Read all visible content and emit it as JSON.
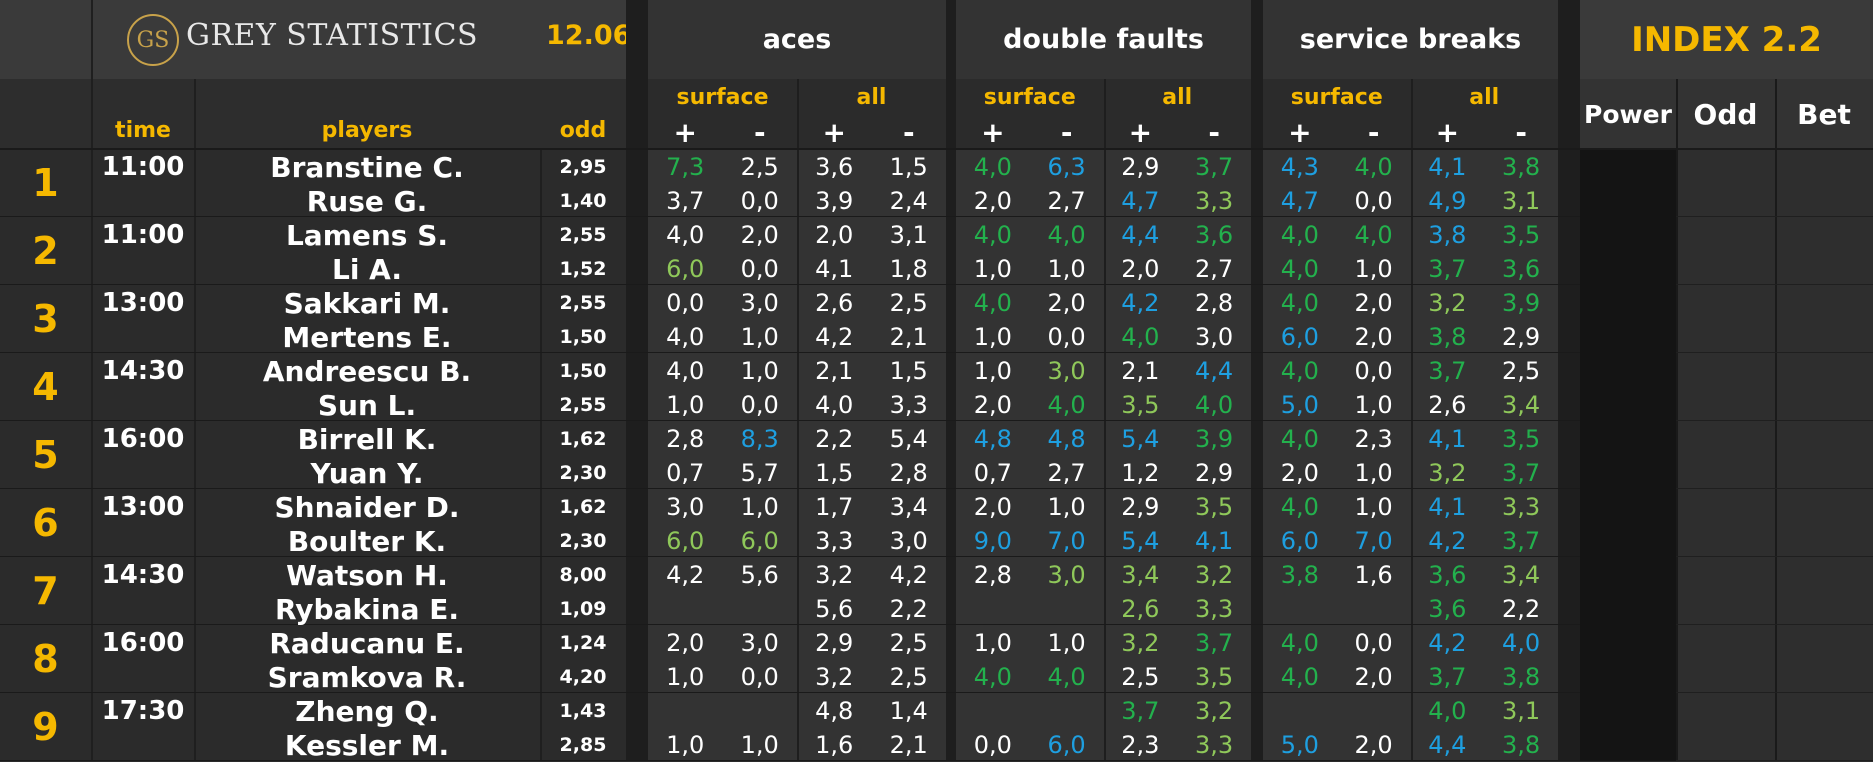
{
  "header": {
    "logo_mark": "GS",
    "brand": "GREY STATISTICS",
    "date": "12.06",
    "col_time": "time",
    "col_players": "players",
    "col_odd": "odd",
    "groups": [
      {
        "title": "aces",
        "sub_surface": "surface",
        "sub_all": "all"
      },
      {
        "title": "double faults",
        "sub_surface": "surface",
        "sub_all": "all"
      },
      {
        "title": "service breaks",
        "sub_surface": "surface",
        "sub_all": "all"
      }
    ],
    "plus": "+",
    "minus": "-",
    "index_title": "INDEX 2.2",
    "index_cols": [
      "Power",
      "Odd",
      "Bet"
    ]
  },
  "colors": {
    "white": "#ffffff",
    "green": "#23b14d",
    "blue": "#1e9fe0",
    "lightgreen": "#8fc85a",
    "yellow": "#f5b800"
  },
  "matches": [
    {
      "num": "1",
      "time": "11:00",
      "players": [
        {
          "name": "Branstine C.",
          "odd": "2,95",
          "vals": [
            [
              "7,3",
              "g"
            ],
            [
              "2,5",
              "w"
            ],
            [
              "3,6",
              "w"
            ],
            [
              "1,5",
              "w"
            ],
            [
              "4,0",
              "g"
            ],
            [
              "6,3",
              "b"
            ],
            [
              "2,9",
              "w"
            ],
            [
              "3,7",
              "g"
            ],
            [
              "4,3",
              "b"
            ],
            [
              "4,0",
              "g"
            ],
            [
              "4,1",
              "b"
            ],
            [
              "3,8",
              "g"
            ]
          ]
        },
        {
          "name": "Ruse G.",
          "odd": "1,40",
          "vals": [
            [
              "3,7",
              "w"
            ],
            [
              "0,0",
              "w"
            ],
            [
              "3,9",
              "w"
            ],
            [
              "2,4",
              "w"
            ],
            [
              "2,0",
              "w"
            ],
            [
              "2,7",
              "w"
            ],
            [
              "4,7",
              "b"
            ],
            [
              "3,3",
              "l"
            ],
            [
              "4,7",
              "b"
            ],
            [
              "0,0",
              "w"
            ],
            [
              "4,9",
              "b"
            ],
            [
              "3,1",
              "l"
            ]
          ]
        }
      ]
    },
    {
      "num": "2",
      "time": "11:00",
      "players": [
        {
          "name": "Lamens S.",
          "odd": "2,55",
          "vals": [
            [
              "4,0",
              "w"
            ],
            [
              "2,0",
              "w"
            ],
            [
              "2,0",
              "w"
            ],
            [
              "3,1",
              "w"
            ],
            [
              "4,0",
              "g"
            ],
            [
              "4,0",
              "g"
            ],
            [
              "4,4",
              "b"
            ],
            [
              "3,6",
              "g"
            ],
            [
              "4,0",
              "g"
            ],
            [
              "4,0",
              "g"
            ],
            [
              "3,8",
              "b"
            ],
            [
              "3,5",
              "g"
            ]
          ]
        },
        {
          "name": "Li A.",
          "odd": "1,52",
          "vals": [
            [
              "6,0",
              "l"
            ],
            [
              "0,0",
              "w"
            ],
            [
              "4,1",
              "w"
            ],
            [
              "1,8",
              "w"
            ],
            [
              "1,0",
              "w"
            ],
            [
              "1,0",
              "w"
            ],
            [
              "2,0",
              "w"
            ],
            [
              "2,7",
              "w"
            ],
            [
              "4,0",
              "g"
            ],
            [
              "1,0",
              "w"
            ],
            [
              "3,7",
              "g"
            ],
            [
              "3,6",
              "g"
            ]
          ]
        }
      ]
    },
    {
      "num": "3",
      "time": "13:00",
      "players": [
        {
          "name": "Sakkari M.",
          "odd": "2,55",
          "vals": [
            [
              "0,0",
              "w"
            ],
            [
              "3,0",
              "w"
            ],
            [
              "2,6",
              "w"
            ],
            [
              "2,5",
              "w"
            ],
            [
              "4,0",
              "g"
            ],
            [
              "2,0",
              "w"
            ],
            [
              "4,2",
              "b"
            ],
            [
              "2,8",
              "w"
            ],
            [
              "4,0",
              "g"
            ],
            [
              "2,0",
              "w"
            ],
            [
              "3,2",
              "l"
            ],
            [
              "3,9",
              "g"
            ]
          ]
        },
        {
          "name": "Mertens E.",
          "odd": "1,50",
          "vals": [
            [
              "4,0",
              "w"
            ],
            [
              "1,0",
              "w"
            ],
            [
              "4,2",
              "w"
            ],
            [
              "2,1",
              "w"
            ],
            [
              "1,0",
              "w"
            ],
            [
              "0,0",
              "w"
            ],
            [
              "4,0",
              "g"
            ],
            [
              "3,0",
              "w"
            ],
            [
              "6,0",
              "b"
            ],
            [
              "2,0",
              "w"
            ],
            [
              "3,8",
              "g"
            ],
            [
              "2,9",
              "w"
            ]
          ]
        }
      ]
    },
    {
      "num": "4",
      "time": "14:30",
      "players": [
        {
          "name": "Andreescu B.",
          "odd": "1,50",
          "vals": [
            [
              "4,0",
              "w"
            ],
            [
              "1,0",
              "w"
            ],
            [
              "2,1",
              "w"
            ],
            [
              "1,5",
              "w"
            ],
            [
              "1,0",
              "w"
            ],
            [
              "3,0",
              "l"
            ],
            [
              "2,1",
              "w"
            ],
            [
              "4,4",
              "b"
            ],
            [
              "4,0",
              "g"
            ],
            [
              "0,0",
              "w"
            ],
            [
              "3,7",
              "g"
            ],
            [
              "2,5",
              "w"
            ]
          ]
        },
        {
          "name": "Sun L.",
          "odd": "2,55",
          "vals": [
            [
              "1,0",
              "w"
            ],
            [
              "0,0",
              "w"
            ],
            [
              "4,0",
              "w"
            ],
            [
              "3,3",
              "w"
            ],
            [
              "2,0",
              "w"
            ],
            [
              "4,0",
              "g"
            ],
            [
              "3,5",
              "l"
            ],
            [
              "4,0",
              "g"
            ],
            [
              "5,0",
              "b"
            ],
            [
              "1,0",
              "w"
            ],
            [
              "2,6",
              "w"
            ],
            [
              "3,4",
              "l"
            ]
          ]
        }
      ]
    },
    {
      "num": "5",
      "time": "16:00",
      "players": [
        {
          "name": "Birrell K.",
          "odd": "1,62",
          "vals": [
            [
              "2,8",
              "w"
            ],
            [
              "8,3",
              "b"
            ],
            [
              "2,2",
              "w"
            ],
            [
              "5,4",
              "w"
            ],
            [
              "4,8",
              "b"
            ],
            [
              "4,8",
              "b"
            ],
            [
              "5,4",
              "b"
            ],
            [
              "3,9",
              "g"
            ],
            [
              "4,0",
              "g"
            ],
            [
              "2,3",
              "w"
            ],
            [
              "4,1",
              "b"
            ],
            [
              "3,5",
              "g"
            ]
          ]
        },
        {
          "name": "Yuan Y.",
          "odd": "2,30",
          "vals": [
            [
              "0,7",
              "w"
            ],
            [
              "5,7",
              "w"
            ],
            [
              "1,5",
              "w"
            ],
            [
              "2,8",
              "w"
            ],
            [
              "0,7",
              "w"
            ],
            [
              "2,7",
              "w"
            ],
            [
              "1,2",
              "w"
            ],
            [
              "2,9",
              "w"
            ],
            [
              "2,0",
              "w"
            ],
            [
              "1,0",
              "w"
            ],
            [
              "3,2",
              "l"
            ],
            [
              "3,7",
              "g"
            ]
          ]
        }
      ]
    },
    {
      "num": "6",
      "time": "13:00",
      "players": [
        {
          "name": "Shnaider D.",
          "odd": "1,62",
          "vals": [
            [
              "3,0",
              "w"
            ],
            [
              "1,0",
              "w"
            ],
            [
              "1,7",
              "w"
            ],
            [
              "3,4",
              "w"
            ],
            [
              "2,0",
              "w"
            ],
            [
              "1,0",
              "w"
            ],
            [
              "2,9",
              "w"
            ],
            [
              "3,5",
              "l"
            ],
            [
              "4,0",
              "g"
            ],
            [
              "1,0",
              "w"
            ],
            [
              "4,1",
              "b"
            ],
            [
              "3,3",
              "l"
            ]
          ]
        },
        {
          "name": "Boulter K.",
          "odd": "2,30",
          "vals": [
            [
              "6,0",
              "l"
            ],
            [
              "6,0",
              "l"
            ],
            [
              "3,3",
              "w"
            ],
            [
              "3,0",
              "w"
            ],
            [
              "9,0",
              "b"
            ],
            [
              "7,0",
              "b"
            ],
            [
              "5,4",
              "b"
            ],
            [
              "4,1",
              "b"
            ],
            [
              "6,0",
              "b"
            ],
            [
              "7,0",
              "b"
            ],
            [
              "4,2",
              "b"
            ],
            [
              "3,7",
              "g"
            ]
          ]
        }
      ]
    },
    {
      "num": "7",
      "time": "14:30",
      "players": [
        {
          "name": "Watson H.",
          "odd": "8,00",
          "vals": [
            [
              "4,2",
              "w"
            ],
            [
              "5,6",
              "w"
            ],
            [
              "3,2",
              "w"
            ],
            [
              "4,2",
              "w"
            ],
            [
              "2,8",
              "w"
            ],
            [
              "3,0",
              "l"
            ],
            [
              "3,4",
              "l"
            ],
            [
              "3,2",
              "l"
            ],
            [
              "3,8",
              "g"
            ],
            [
              "1,6",
              "w"
            ],
            [
              "3,6",
              "g"
            ],
            [
              "3,4",
              "l"
            ]
          ]
        },
        {
          "name": "Rybakina E.",
          "odd": "1,09",
          "vals": [
            [
              "",
              ""
            ],
            [
              "",
              ""
            ],
            [
              "5,6",
              "w"
            ],
            [
              "2,2",
              "w"
            ],
            [
              "",
              ""
            ],
            [
              "",
              ""
            ],
            [
              "2,6",
              "l"
            ],
            [
              "3,3",
              "l"
            ],
            [
              "",
              ""
            ],
            [
              "",
              ""
            ],
            [
              "3,6",
              "g"
            ],
            [
              "2,2",
              "w"
            ]
          ]
        }
      ]
    },
    {
      "num": "8",
      "time": "16:00",
      "players": [
        {
          "name": "Raducanu E.",
          "odd": "1,24",
          "vals": [
            [
              "2,0",
              "w"
            ],
            [
              "3,0",
              "w"
            ],
            [
              "2,9",
              "w"
            ],
            [
              "2,5",
              "w"
            ],
            [
              "1,0",
              "w"
            ],
            [
              "1,0",
              "w"
            ],
            [
              "3,2",
              "l"
            ],
            [
              "3,7",
              "g"
            ],
            [
              "4,0",
              "g"
            ],
            [
              "0,0",
              "w"
            ],
            [
              "4,2",
              "b"
            ],
            [
              "4,0",
              "b"
            ]
          ]
        },
        {
          "name": "Sramkova R.",
          "odd": "4,20",
          "vals": [
            [
              "1,0",
              "w"
            ],
            [
              "0,0",
              "w"
            ],
            [
              "3,2",
              "w"
            ],
            [
              "2,5",
              "w"
            ],
            [
              "4,0",
              "g"
            ],
            [
              "4,0",
              "g"
            ],
            [
              "2,5",
              "w"
            ],
            [
              "3,5",
              "l"
            ],
            [
              "4,0",
              "g"
            ],
            [
              "2,0",
              "w"
            ],
            [
              "3,7",
              "g"
            ],
            [
              "3,8",
              "g"
            ]
          ]
        }
      ]
    },
    {
      "num": "9",
      "time": "17:30",
      "players": [
        {
          "name": "Zheng Q.",
          "odd": "1,43",
          "vals": [
            [
              "",
              ""
            ],
            [
              "",
              ""
            ],
            [
              "4,8",
              "w"
            ],
            [
              "1,4",
              "w"
            ],
            [
              "",
              ""
            ],
            [
              "",
              ""
            ],
            [
              "3,7",
              "g"
            ],
            [
              "3,2",
              "l"
            ],
            [
              "",
              ""
            ],
            [
              "",
              ""
            ],
            [
              "4,0",
              "g"
            ],
            [
              "3,1",
              "l"
            ]
          ]
        },
        {
          "name": "Kessler M.",
          "odd": "2,85",
          "vals": [
            [
              "1,0",
              "w"
            ],
            [
              "1,0",
              "w"
            ],
            [
              "1,6",
              "w"
            ],
            [
              "2,1",
              "w"
            ],
            [
              "0,0",
              "w"
            ],
            [
              "6,0",
              "b"
            ],
            [
              "2,3",
              "w"
            ],
            [
              "3,3",
              "l"
            ],
            [
              "5,0",
              "b"
            ],
            [
              "2,0",
              "w"
            ],
            [
              "4,4",
              "b"
            ],
            [
              "3,8",
              "g"
            ]
          ]
        }
      ]
    }
  ]
}
